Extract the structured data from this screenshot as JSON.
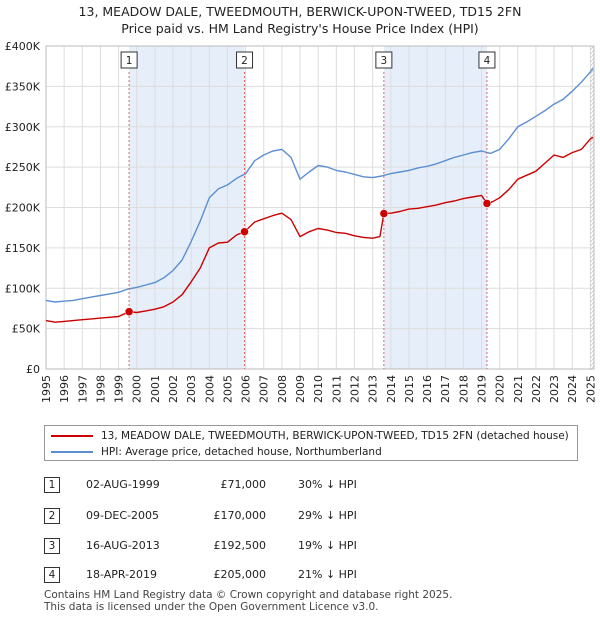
{
  "chart_data": {
    "type": "line",
    "title": "13, MEADOW DALE, TWEEDMOUTH, BERWICK-UPON-TWEED, TD15 2FN",
    "subtitle": "Price paid vs. HM Land Registry's House Price Index (HPI)",
    "xlim": [
      1995,
      2025.2
    ],
    "ylim": [
      0,
      400000
    ],
    "x_ticks": [
      "1995",
      "1996",
      "1997",
      "1998",
      "1999",
      "2000",
      "2001",
      "2002",
      "2003",
      "2004",
      "2005",
      "2006",
      "2007",
      "2008",
      "2009",
      "2010",
      "2011",
      "2012",
      "2013",
      "2014",
      "2015",
      "2016",
      "2017",
      "2018",
      "2019",
      "2020",
      "2021",
      "2022",
      "2023",
      "2024",
      "2025"
    ],
    "y_ticks": [
      {
        "value": 0,
        "label": "£0"
      },
      {
        "value": 50000,
        "label": "£50K"
      },
      {
        "value": 100000,
        "label": "£100K"
      },
      {
        "value": 150000,
        "label": "£150K"
      },
      {
        "value": 200000,
        "label": "£200K"
      },
      {
        "value": 250000,
        "label": "£250K"
      },
      {
        "value": 300000,
        "label": "£300K"
      },
      {
        "value": 350000,
        "label": "£350K"
      },
      {
        "value": 400000,
        "label": "£400K"
      }
    ],
    "series": [
      {
        "name": "13, MEADOW DALE, TWEEDMOUTH, BERWICK-UPON-TWEED, TD15 2FN (detached house)",
        "color": "#cc0000",
        "x": [
          1995.0,
          1995.5,
          1996.0,
          1996.5,
          1997.0,
          1997.5,
          1998.0,
          1998.5,
          1999.0,
          1999.58,
          2000.0,
          2000.5,
          2001.0,
          2001.5,
          2002.0,
          2002.5,
          2003.0,
          2003.5,
          2004.0,
          2004.5,
          2005.0,
          2005.5,
          2005.94,
          2006.5,
          2007.0,
          2007.5,
          2008.0,
          2008.5,
          2009.0,
          2009.5,
          2010.0,
          2010.5,
          2011.0,
          2011.5,
          2012.0,
          2012.5,
          2013.0,
          2013.4,
          2013.62,
          2014.0,
          2014.5,
          2015.0,
          2015.5,
          2016.0,
          2016.5,
          2017.0,
          2017.5,
          2018.0,
          2018.5,
          2019.0,
          2019.3,
          2019.6,
          2020.0,
          2020.5,
          2021.0,
          2021.5,
          2022.0,
          2022.5,
          2023.0,
          2023.5,
          2024.0,
          2024.5,
          2025.0,
          2025.15
        ],
        "y": [
          60000,
          58000,
          59000,
          60000,
          61000,
          62000,
          63000,
          64000,
          65000,
          71000,
          70000,
          72000,
          74000,
          77000,
          83000,
          92000,
          108000,
          125000,
          150000,
          156000,
          157000,
          166000,
          170000,
          182000,
          186000,
          190000,
          193000,
          185000,
          164000,
          170000,
          174000,
          172000,
          169000,
          168000,
          165000,
          163000,
          162000,
          164000,
          192500,
          193000,
          195000,
          198000,
          199000,
          201000,
          203000,
          206000,
          208000,
          211000,
          213000,
          215000,
          205000,
          207000,
          212000,
          222000,
          235000,
          240000,
          245000,
          255000,
          265000,
          262000,
          268000,
          272000,
          285000,
          287000
        ]
      },
      {
        "name": "HPI: Average price, detached house, Northumberland",
        "color": "#5b8fd0",
        "x": [
          1995.0,
          1995.5,
          1996.0,
          1996.5,
          1997.0,
          1997.5,
          1998.0,
          1998.5,
          1999.0,
          1999.5,
          2000.0,
          2000.5,
          2001.0,
          2001.5,
          2002.0,
          2002.5,
          2003.0,
          2003.5,
          2004.0,
          2004.5,
          2005.0,
          2005.5,
          2006.0,
          2006.5,
          2007.0,
          2007.5,
          2008.0,
          2008.5,
          2009.0,
          2009.5,
          2010.0,
          2010.5,
          2011.0,
          2011.5,
          2012.0,
          2012.5,
          2013.0,
          2013.5,
          2014.0,
          2014.5,
          2015.0,
          2015.5,
          2016.0,
          2016.5,
          2017.0,
          2017.5,
          2018.0,
          2018.5,
          2019.0,
          2019.5,
          2020.0,
          2020.5,
          2021.0,
          2021.5,
          2022.0,
          2022.5,
          2023.0,
          2023.5,
          2024.0,
          2024.5,
          2025.0,
          2025.15
        ],
        "y": [
          85000,
          83000,
          84000,
          85000,
          87000,
          89000,
          91000,
          93000,
          95000,
          99000,
          101000,
          104000,
          107000,
          113000,
          122000,
          135000,
          158000,
          183000,
          212000,
          223000,
          228000,
          236000,
          242000,
          258000,
          265000,
          270000,
          272000,
          262000,
          235000,
          244000,
          252000,
          250000,
          246000,
          244000,
          241000,
          238000,
          237000,
          239000,
          242000,
          244000,
          246000,
          249000,
          251000,
          254000,
          258000,
          262000,
          265000,
          268000,
          270000,
          267000,
          272000,
          285000,
          300000,
          306000,
          313000,
          320000,
          328000,
          334000,
          344000,
          355000,
          368000,
          372000
        ]
      }
    ],
    "sales": [
      {
        "marker": "1",
        "x": 1999.58,
        "price": 71000
      },
      {
        "marker": "2",
        "x": 2005.94,
        "price": 170000
      },
      {
        "marker": "3",
        "x": 2013.62,
        "price": 192500
      },
      {
        "marker": "4",
        "x": 2019.3,
        "price": 205000
      }
    ],
    "shaded_ranges": [
      [
        1999.58,
        2005.94
      ],
      [
        2013.62,
        2019.3
      ]
    ],
    "hatched_from": 2025.0
  },
  "legend": {
    "property_label": "13, MEADOW DALE, TWEEDMOUTH, BERWICK-UPON-TWEED, TD15 2FN (detached house)",
    "hpi_label": "HPI: Average price, detached house, Northumberland"
  },
  "transactions": [
    {
      "num": "1",
      "date": "02-AUG-1999",
      "price": "£71,000",
      "hpi": "30% ↓ HPI"
    },
    {
      "num": "2",
      "date": "09-DEC-2005",
      "price": "£170,000",
      "hpi": "29% ↓ HPI"
    },
    {
      "num": "3",
      "date": "16-AUG-2013",
      "price": "£192,500",
      "hpi": "19% ↓ HPI"
    },
    {
      "num": "4",
      "date": "18-APR-2019",
      "price": "£205,000",
      "hpi": "21% ↓ HPI"
    }
  ],
  "footer": {
    "line1": "Contains HM Land Registry data © Crown copyright and database right 2025.",
    "line2": "This data is licensed under the Open Government Licence v3.0."
  },
  "colors": {
    "property": "#cc0000",
    "hpi": "#5b8fd0",
    "shade": "#e6eefa",
    "grid": "#dddddd",
    "marker_line": "#e06666"
  }
}
